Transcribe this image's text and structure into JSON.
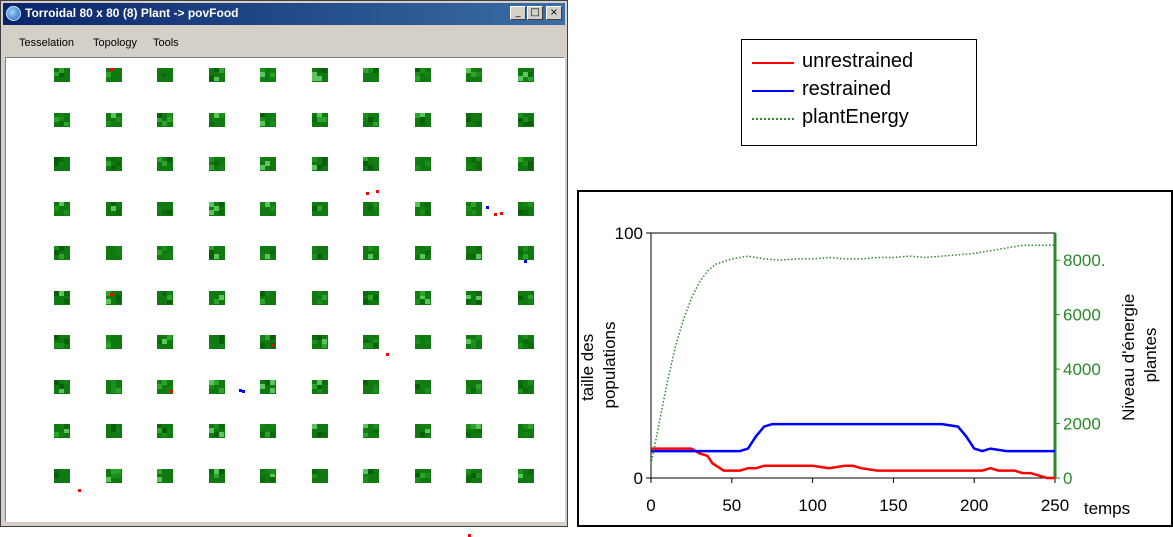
{
  "window": {
    "title": "Torroidal 80 x 80 (8) Plant -> povFood",
    "buttons": {
      "minimize": "_",
      "maximize": "□",
      "close": "×"
    },
    "menu": [
      "Tesselation",
      "Topology",
      "Tools"
    ],
    "grid": {
      "rows": 10,
      "cols": 10,
      "plant_color_dark": "#0a6a0a",
      "plant_color_light": "#6fd06f",
      "agent_unrestrained_color": "#ff0000",
      "agent_restrained_color": "#0000ff"
    }
  },
  "legend": {
    "items": [
      {
        "label": "unrestrained",
        "color": "#ff0000",
        "style": "solid"
      },
      {
        "label": "restrained",
        "color": "#0000ff",
        "style": "solid"
      },
      {
        "label": "plantEnergy",
        "color": "#2a8a2a",
        "style": "dotted"
      }
    ]
  },
  "chart_data": {
    "type": "line",
    "xlabel": "temps",
    "ylabel_left": "taille des populations",
    "ylabel_right_line1": "Niveau d'énergie",
    "ylabel_right_line2": "plantes",
    "xlim": [
      0,
      250
    ],
    "ylim_left": [
      0,
      100
    ],
    "ylim_right": [
      0,
      9000
    ],
    "x_ticks": [
      0,
      50,
      100,
      150,
      200,
      250
    ],
    "y_left_ticks": [
      0,
      100
    ],
    "y_right_ticks": [
      0,
      2000,
      4000,
      6000,
      8000
    ],
    "y_right_tick_labels": [
      "0",
      "2000",
      "4000",
      "6000",
      "8000."
    ],
    "series": [
      {
        "name": "unrestrained",
        "axis": "left",
        "color": "#ff0000",
        "style": "solid",
        "x": [
          0,
          25,
          30,
          35,
          38,
          45,
          50,
          55,
          60,
          65,
          70,
          80,
          90,
          100,
          110,
          120,
          125,
          130,
          140,
          150,
          160,
          170,
          180,
          190,
          200,
          205,
          210,
          215,
          220,
          225,
          230,
          235,
          240,
          245,
          250
        ],
        "y": [
          12,
          12,
          10,
          9,
          6,
          3,
          3,
          3,
          4,
          4,
          5,
          5,
          5,
          5,
          4,
          5,
          5,
          4,
          3,
          3,
          3,
          3,
          3,
          3,
          3,
          3,
          4,
          3,
          3,
          3,
          2,
          2,
          1,
          0,
          0
        ]
      },
      {
        "name": "restrained",
        "axis": "left",
        "color": "#0000ff",
        "style": "solid",
        "x": [
          0,
          20,
          40,
          55,
          60,
          65,
          70,
          75,
          80,
          100,
          120,
          140,
          160,
          180,
          190,
          195,
          200,
          205,
          210,
          220,
          250
        ],
        "y": [
          11,
          11,
          11,
          11,
          12,
          17,
          21,
          22,
          22,
          22,
          22,
          22,
          22,
          22,
          21,
          17,
          12,
          11,
          12,
          11,
          11
        ]
      },
      {
        "name": "plantEnergy",
        "axis": "right",
        "color": "#2a8a2a",
        "style": "dotted",
        "x": [
          0,
          5,
          10,
          15,
          20,
          25,
          30,
          35,
          40,
          50,
          60,
          70,
          80,
          90,
          100,
          110,
          120,
          130,
          140,
          150,
          160,
          170,
          180,
          190,
          200,
          210,
          220,
          230,
          240,
          250
        ],
        "y": [
          500,
          2000,
          3500,
          4800,
          5800,
          6600,
          7200,
          7600,
          7850,
          8050,
          8150,
          8050,
          8000,
          8050,
          8050,
          8100,
          8050,
          8050,
          8100,
          8100,
          8150,
          8100,
          8150,
          8200,
          8250,
          8350,
          8450,
          8550,
          8550,
          8550
        ]
      }
    ]
  }
}
